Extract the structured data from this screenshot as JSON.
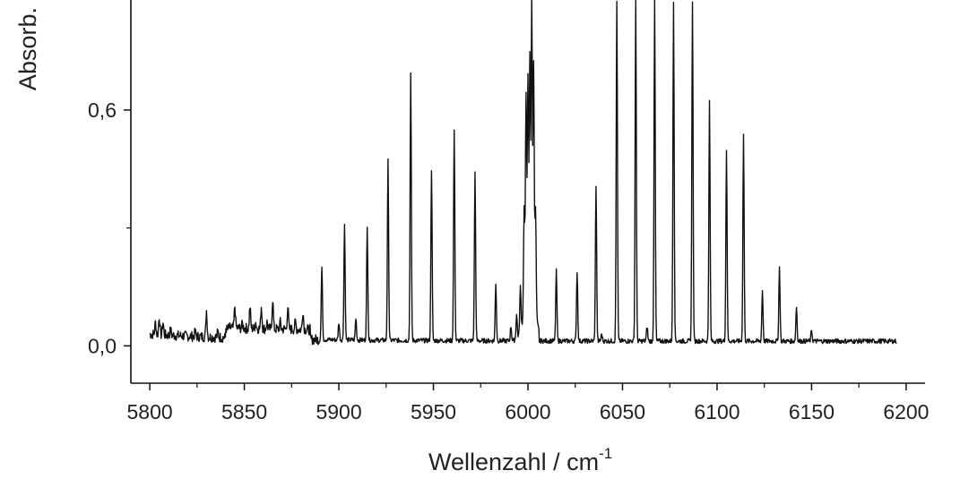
{
  "chart_data": {
    "type": "line",
    "title": "",
    "xlabel": "Wellenzahl / cm",
    "xlabel_superscript": "-1",
    "ylabel": "Absorb.",
    "xlim": [
      5790,
      6210
    ],
    "ylim": [
      -0.095,
      0.88
    ],
    "x_ticks": [
      5800,
      5850,
      5900,
      5950,
      6000,
      6050,
      6100,
      6150,
      6200
    ],
    "x_tick_labels": [
      "5800",
      "5850",
      "5900",
      "5950",
      "6000",
      "6050",
      "6100",
      "6150",
      "6200"
    ],
    "y_ticks": [
      0.0,
      0.6
    ],
    "y_tick_labels": [
      "0,0",
      "0,6"
    ],
    "y_minor_ticks": [
      0.3
    ],
    "grid": false,
    "legend": "none",
    "line_color": "#111111",
    "series": [
      {
        "baseline_noise": 0.006,
        "x_range": [
          5800,
          6195
        ],
        "peaks": [
          {
            "x": 5803,
            "y": 0.06
          },
          {
            "x": 5805,
            "y": 0.075
          },
          {
            "x": 5807,
            "y": 0.06
          },
          {
            "x": 5811,
            "y": 0.04
          },
          {
            "x": 5824,
            "y": 0.035
          },
          {
            "x": 5830,
            "y": 0.09
          },
          {
            "x": 5836,
            "y": 0.035
          },
          {
            "x": 5841,
            "y": 0.04
          },
          {
            "x": 5845,
            "y": 0.1
          },
          {
            "x": 5849,
            "y": 0.055
          },
          {
            "x": 5853,
            "y": 0.1
          },
          {
            "x": 5856,
            "y": 0.06
          },
          {
            "x": 5859,
            "y": 0.1
          },
          {
            "x": 5862,
            "y": 0.06
          },
          {
            "x": 5865,
            "y": 0.12
          },
          {
            "x": 5869,
            "y": 0.06
          },
          {
            "x": 5873,
            "y": 0.1
          },
          {
            "x": 5877,
            "y": 0.06
          },
          {
            "x": 5881,
            "y": 0.09
          },
          {
            "x": 5891,
            "y": 0.2
          },
          {
            "x": 5900,
            "y": 0.06
          },
          {
            "x": 5903,
            "y": 0.31
          },
          {
            "x": 5909,
            "y": 0.07
          },
          {
            "x": 5915,
            "y": 0.3
          },
          {
            "x": 5926,
            "y": 0.47
          },
          {
            "x": 5938,
            "y": 0.69
          },
          {
            "x": 5949,
            "y": 0.45
          },
          {
            "x": 5961,
            "y": 0.55
          },
          {
            "x": 5972,
            "y": 0.44
          },
          {
            "x": 5983,
            "y": 0.16
          },
          {
            "x": 5991,
            "y": 0.05
          },
          {
            "x": 5994,
            "y": 0.08
          },
          {
            "x": 5996,
            "y": 0.15
          },
          {
            "x": 5998,
            "y": 0.35
          },
          {
            "x": 5999,
            "y": 0.64
          },
          {
            "x": 6000,
            "y": 0.68
          },
          {
            "x": 6001,
            "y": 0.74
          },
          {
            "x": 6002,
            "y": 0.88
          },
          {
            "x": 6003,
            "y": 0.72
          },
          {
            "x": 6004,
            "y": 0.35
          },
          {
            "x": 6015,
            "y": 0.19
          },
          {
            "x": 6026,
            "y": 0.19
          },
          {
            "x": 6036,
            "y": 0.41
          },
          {
            "x": 6039,
            "y": 0.03
          },
          {
            "x": 6047,
            "y": 0.88
          },
          {
            "x": 6057,
            "y": 0.88
          },
          {
            "x": 6063,
            "y": 0.05
          },
          {
            "x": 6067,
            "y": 0.88
          },
          {
            "x": 6077,
            "y": 0.88
          },
          {
            "x": 6087,
            "y": 0.88
          },
          {
            "x": 6096,
            "y": 0.62
          },
          {
            "x": 6105,
            "y": 0.5
          },
          {
            "x": 6114,
            "y": 0.54
          },
          {
            "x": 6124,
            "y": 0.14
          },
          {
            "x": 6133,
            "y": 0.2
          },
          {
            "x": 6142,
            "y": 0.1
          },
          {
            "x": 6150,
            "y": 0.04
          }
        ]
      }
    ]
  }
}
